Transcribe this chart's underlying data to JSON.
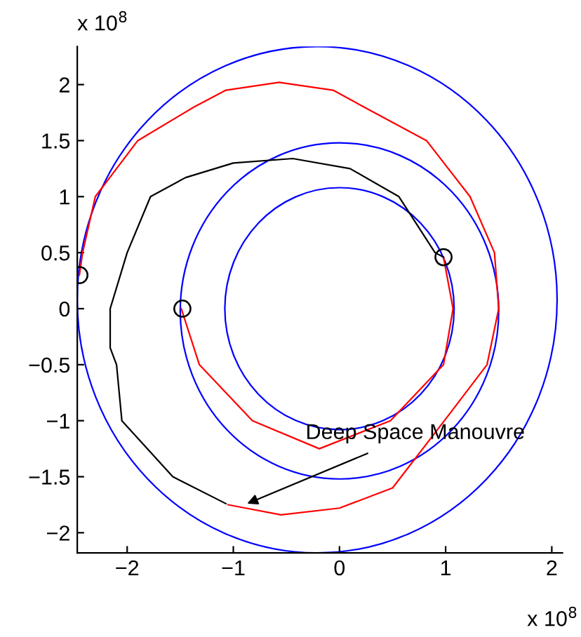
{
  "chart_data": {
    "type": "line",
    "xlim": [
      -2.47,
      2.1
    ],
    "ylim": [
      -2.18,
      2.34
    ],
    "xticks": [
      {
        "value": -2,
        "label": "−2"
      },
      {
        "value": -1,
        "label": "−1"
      },
      0,
      1,
      2
    ],
    "yticks": [
      {
        "value": -2,
        "label": "−2"
      },
      {
        "value": -1.5,
        "label": "−1.5"
      },
      {
        "value": -1,
        "label": "−1"
      },
      {
        "value": -0.5,
        "label": "−0.5"
      },
      0,
      0.5,
      1,
      1.5,
      2
    ],
    "grid": false,
    "legend": false,
    "line_style": "solid",
    "annotations": [
      "x 10$^{8}$",
      "x 10$^{8}$",
      {
        "text": "Deep Space Manouvre",
        "x": -0.87,
        "y": -1.74
      }
    ],
    "series": [
      {
        "color": "#ff0000",
        "x": [
          -1.49,
          -1.32,
          -0.82,
          -0.19,
          0.48,
          0.98,
          1.07,
          0.98
        ],
        "values": [
          0,
          -0.5,
          -1.0,
          -1.25,
          -1.0,
          -0.5,
          0,
          0.46
        ]
      },
      {
        "color": "#ff0000",
        "x": [
          -1.05,
          -0.55,
          0.0,
          0.5,
          1.02,
          1.39,
          1.5,
          1.46,
          1.23,
          0.82,
          0.23,
          -0.06,
          -0.57,
          -1.07,
          -1.37,
          -1.9,
          -2.3,
          -2.42,
          -2.45
        ],
        "values": [
          -1.75,
          -1.84,
          -1.78,
          -1.6,
          -0.96,
          -0.5,
          0,
          0.5,
          1.0,
          1.5,
          1.8,
          1.95,
          2.02,
          1.95,
          1.8,
          1.5,
          1.0,
          0.5,
          0.3
        ]
      },
      {
        "color": "#000000",
        "x": [
          0.98,
          0.9,
          0.56,
          0.1,
          -0.44,
          -1.0,
          -1.45,
          -1.78,
          -2.0,
          -2.16,
          -2.16,
          -2.1,
          -2.05,
          -1.57,
          -1.07
        ],
        "values": [
          0.46,
          0.5,
          1.0,
          1.25,
          1.34,
          1.3,
          1.17,
          1.0,
          0.5,
          0.0,
          -0.35,
          -0.5,
          -1.0,
          -1.5,
          -1.74
        ]
      },
      {
        "type": "scatter",
        "color": "#000000",
        "marker": "circle",
        "x": [
          -2.45,
          -1.48,
          0.98
        ],
        "values": [
          0.3,
          0.0,
          0.46
        ]
      }
    ]
  }
}
